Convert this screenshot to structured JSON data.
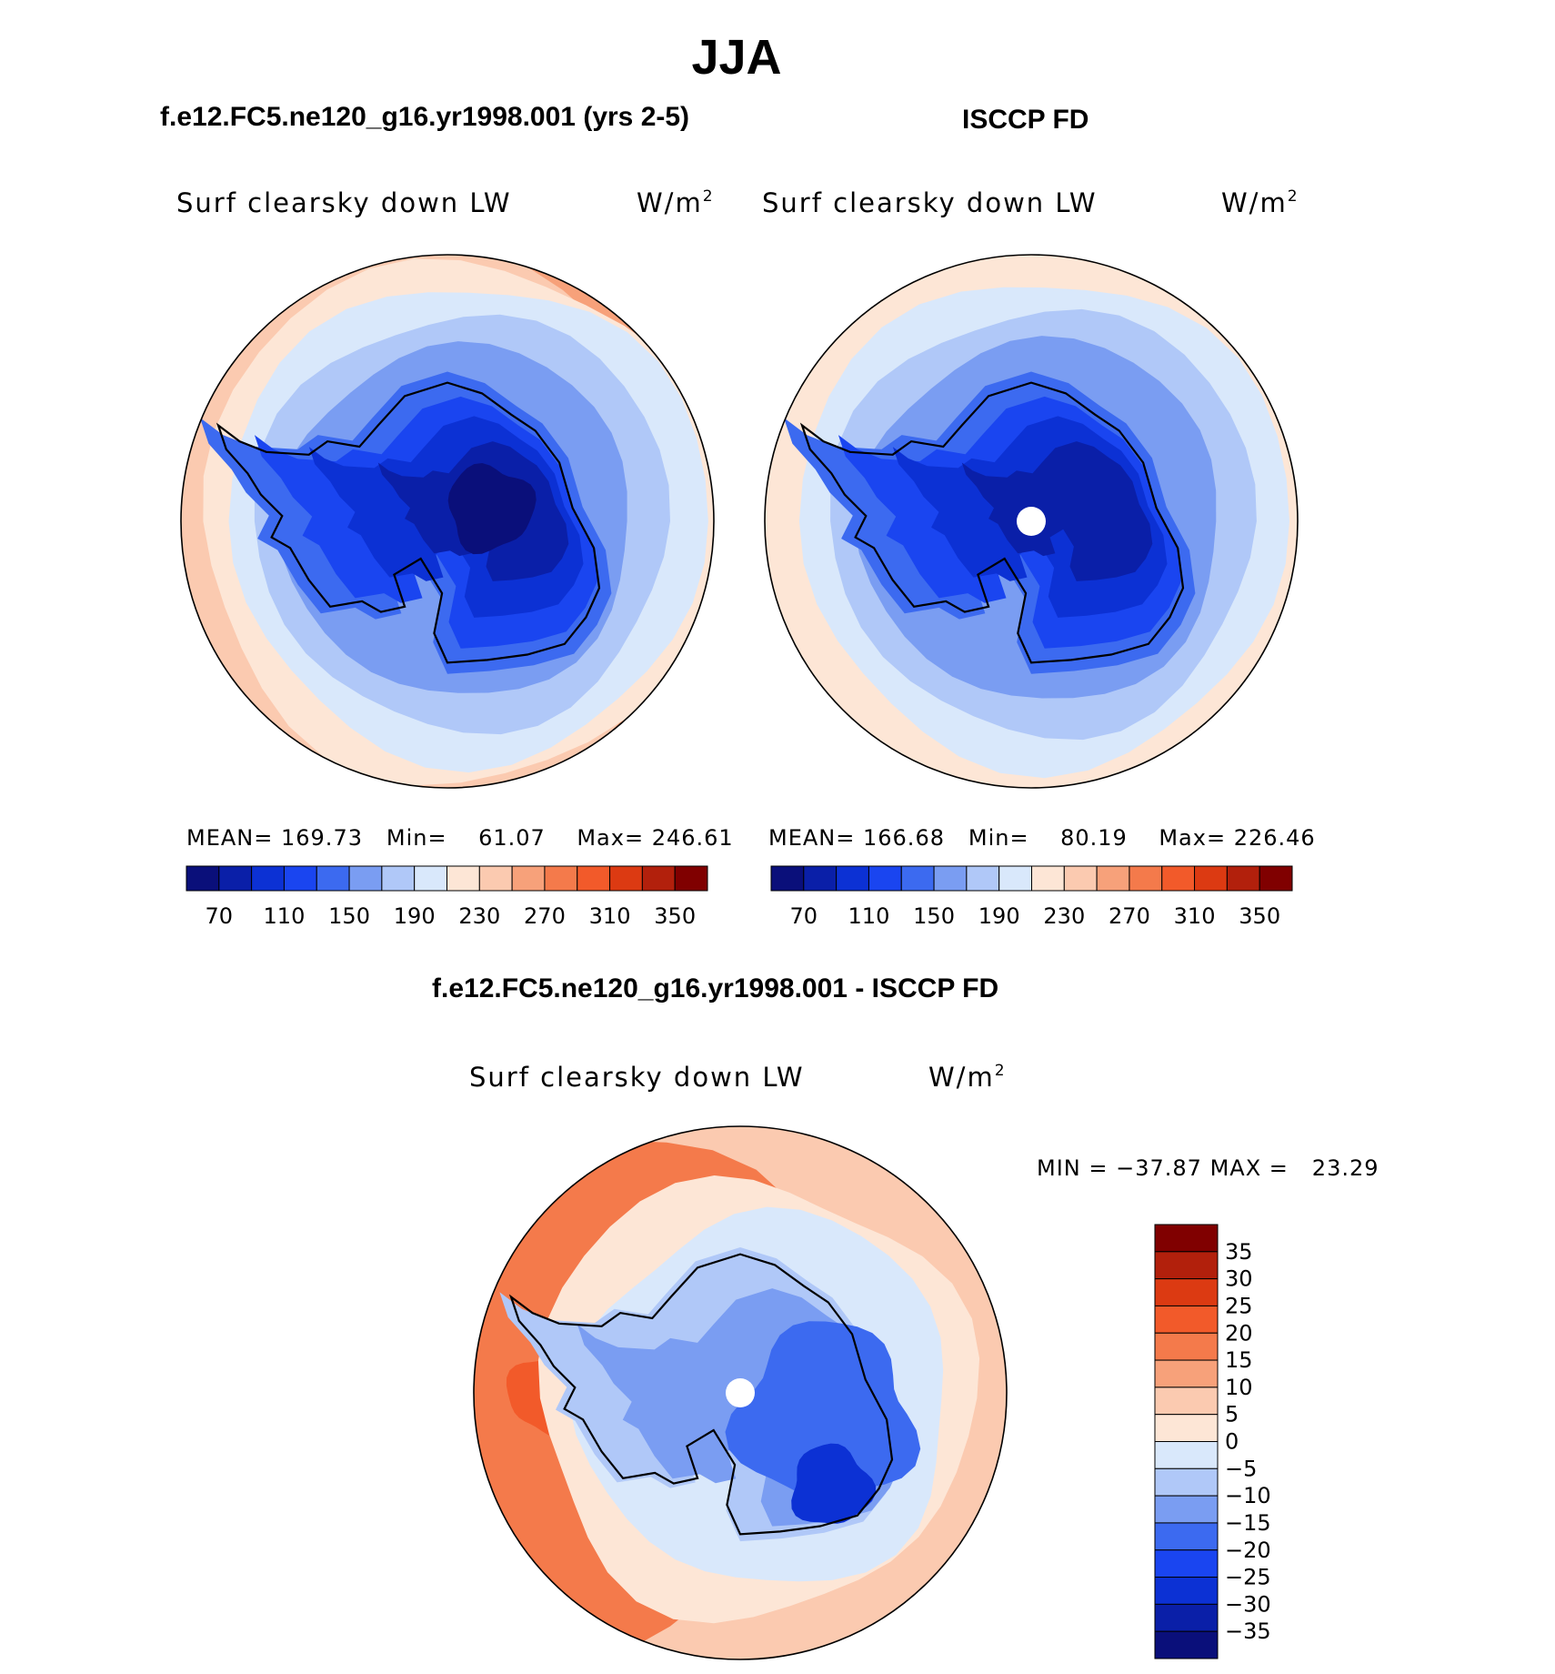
{
  "figure": {
    "title": "JJA",
    "left_title": "f.e12.FC5.ne120_g16.yr1998.001 (yrs 2-5)",
    "right_title": "ISCCP FD",
    "diff_title": "f.e12.FC5.ne120_g16.yr1998.001 - ISCCP FD"
  },
  "colors": {
    "main_scale": [
      "#0a0f7a",
      "#0a1fa8",
      "#0c31d4",
      "#1a45f0",
      "#3c6af0",
      "#7a9df2",
      "#b0c8f8",
      "#d9e8fb",
      "#fde6d6",
      "#fbcab0",
      "#f7a17a",
      "#f47a4b",
      "#f25a2a",
      "#dc3a12",
      "#b2200c",
      "#800000"
    ],
    "diff_scale": [
      "#0a0f7a",
      "#0a1fa8",
      "#0c31d4",
      "#1a45f0",
      "#3c6af0",
      "#7a9df2",
      "#b0c8f8",
      "#d9e8fb",
      "#fde6d6",
      "#fbcab0",
      "#f7a17a",
      "#f47a4b",
      "#f25a2a",
      "#dc3a12",
      "#b2200c",
      "#800000"
    ]
  },
  "chart_data": [
    {
      "type": "heatmap",
      "title": "f.e12.FC5.ne120_g16.yr1998.001 (yrs 2-5)",
      "variable": "Surf clearsky down LW",
      "units_base": "W/m",
      "units_exp": "2",
      "projection": "south-polar-stereographic",
      "stats": {
        "mean_label": "MEAN=",
        "mean": "169.73",
        "min_label": "Min=",
        "min": "61.07",
        "max_label": "Max=",
        "max": "246.61"
      },
      "levels": [
        70,
        90,
        110,
        130,
        150,
        170,
        190,
        210,
        230,
        250,
        270,
        290,
        310,
        330,
        350
      ],
      "colorbar_labels": [
        "70",
        "110",
        "150",
        "190",
        "230",
        "270",
        "310",
        "350"
      ],
      "legend_placement": "bottom"
    },
    {
      "type": "heatmap",
      "title": "ISCCP FD",
      "variable": "Surf clearsky down LW",
      "units_base": "W/m",
      "units_exp": "2",
      "projection": "south-polar-stereographic",
      "stats": {
        "mean_label": "MEAN=",
        "mean": "166.68",
        "min_label": "Min=",
        "min": "80.19",
        "max_label": "Max=",
        "max": "226.46"
      },
      "levels": [
        70,
        90,
        110,
        130,
        150,
        170,
        190,
        210,
        230,
        250,
        270,
        290,
        310,
        330,
        350
      ],
      "colorbar_labels": [
        "70",
        "110",
        "150",
        "190",
        "230",
        "270",
        "310",
        "350"
      ],
      "legend_placement": "bottom"
    },
    {
      "type": "heatmap",
      "title": "f.e12.FC5.ne120_g16.yr1998.001 - ISCCP FD",
      "variable": "Surf clearsky down LW",
      "units_base": "W/m",
      "units_exp": "2",
      "projection": "south-polar-stereographic",
      "stats": {
        "min_label": "MIN =",
        "min": "−37.87",
        "max_label": "MAX =",
        "max": "23.29"
      },
      "levels": [
        -35,
        -30,
        -25,
        -20,
        -15,
        -10,
        -5,
        0,
        5,
        10,
        15,
        20,
        25,
        30,
        35
      ],
      "colorbar_labels": [
        "35",
        "30",
        "25",
        "20",
        "15",
        "10",
        "5",
        "0",
        "−5",
        "−10",
        "−15",
        "−20",
        "−25",
        "−30",
        "−35"
      ],
      "legend_placement": "right"
    }
  ]
}
